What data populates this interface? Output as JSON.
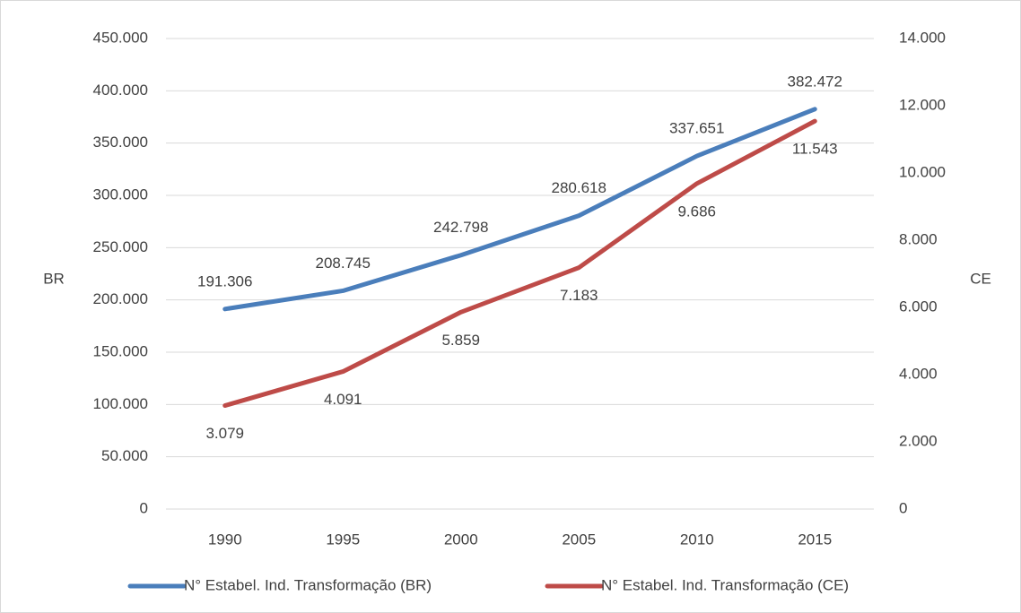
{
  "chart_data": {
    "type": "line",
    "categories": [
      "1990",
      "1995",
      "2000",
      "2005",
      "2010",
      "2015"
    ],
    "series": [
      {
        "name": "N° Estabel. Ind. Transformação (BR)",
        "color": "#4a7ebb",
        "axis": "y",
        "values": [
          191306,
          208745,
          242798,
          280618,
          337651,
          382472
        ],
        "value_labels": [
          "191.306",
          "208.745",
          "242.798",
          "280.618",
          "337.651",
          "382.472"
        ]
      },
      {
        "name": "N° Estabel. Ind. Transformação (CE)",
        "color": "#be4b48",
        "axis": "y2",
        "values": [
          3079,
          4091,
          5859,
          7183,
          9686,
          11543
        ],
        "value_labels": [
          "3.079",
          "4.091",
          "5.859",
          "7.183",
          "9.686",
          "11.543"
        ]
      }
    ],
    "ylabel": "BR",
    "y2label": "CE",
    "ylim": [
      0,
      450000
    ],
    "yticks": [
      0,
      {
        "value": 50000,
        "label": "50.000"
      },
      {
        "value": 100000,
        "label": "100.000"
      },
      {
        "value": 150000,
        "label": "150.000"
      },
      {
        "value": 200000,
        "label": "200.000"
      },
      {
        "value": 250000,
        "label": "250.000"
      },
      {
        "value": 300000,
        "label": "300.000"
      },
      {
        "value": 350000,
        "label": "350.000"
      },
      {
        "value": 400000,
        "label": "400.000"
      },
      {
        "value": 450000,
        "label": "450.000"
      }
    ],
    "y2lim": [
      0,
      14000
    ],
    "y2ticks": [
      0,
      {
        "value": 2000,
        "label": "2.000"
      },
      {
        "value": 4000,
        "label": "4.000"
      },
      {
        "value": 6000,
        "label": "6.000"
      },
      {
        "value": 8000,
        "label": "8.000"
      },
      {
        "value": 10000,
        "label": "10.000"
      },
      {
        "value": 12000,
        "label": "12.000"
      },
      {
        "value": 14000,
        "label": "14.000"
      }
    ],
    "grid": true,
    "legend": "bottom"
  }
}
